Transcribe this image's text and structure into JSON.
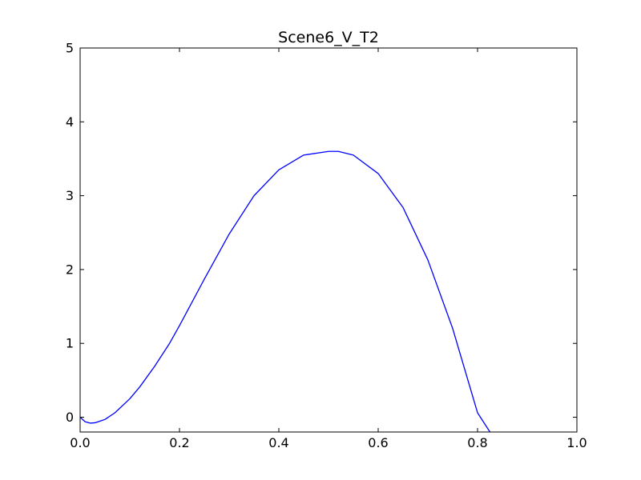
{
  "chart_data": {
    "type": "line",
    "title": "Scene6_V_T2",
    "xlabel": "",
    "ylabel": "",
    "xlim": [
      0.0,
      1.0
    ],
    "ylim": [
      -0.2,
      5.0
    ],
    "grid": false,
    "legend": "none",
    "x_ticks": [
      0.0,
      0.2,
      0.4,
      0.6,
      0.8,
      1.0
    ],
    "x_tick_labels": [
      "0.0",
      "0.2",
      "0.4",
      "0.6",
      "0.8",
      "1.0"
    ],
    "y_ticks": [
      0,
      1,
      2,
      3,
      4,
      5
    ],
    "y_tick_labels": [
      "0",
      "1",
      "2",
      "3",
      "4",
      "5"
    ],
    "series": [
      {
        "name": "Scene6_V_T2",
        "color": "#0000ff",
        "x": [
          0.0,
          0.01,
          0.02,
          0.03,
          0.05,
          0.07,
          0.1,
          0.12,
          0.15,
          0.18,
          0.2,
          0.25,
          0.3,
          0.35,
          0.4,
          0.45,
          0.5,
          0.52,
          0.55,
          0.6,
          0.65,
          0.7,
          0.75,
          0.8,
          0.825
        ],
        "y": [
          0.0,
          -0.06,
          -0.08,
          -0.075,
          -0.03,
          0.06,
          0.25,
          0.41,
          0.69,
          1.0,
          1.24,
          1.87,
          2.48,
          3.0,
          3.35,
          3.55,
          3.6,
          3.6,
          3.55,
          3.3,
          2.84,
          2.13,
          1.2,
          0.06,
          -0.2
        ]
      }
    ]
  }
}
